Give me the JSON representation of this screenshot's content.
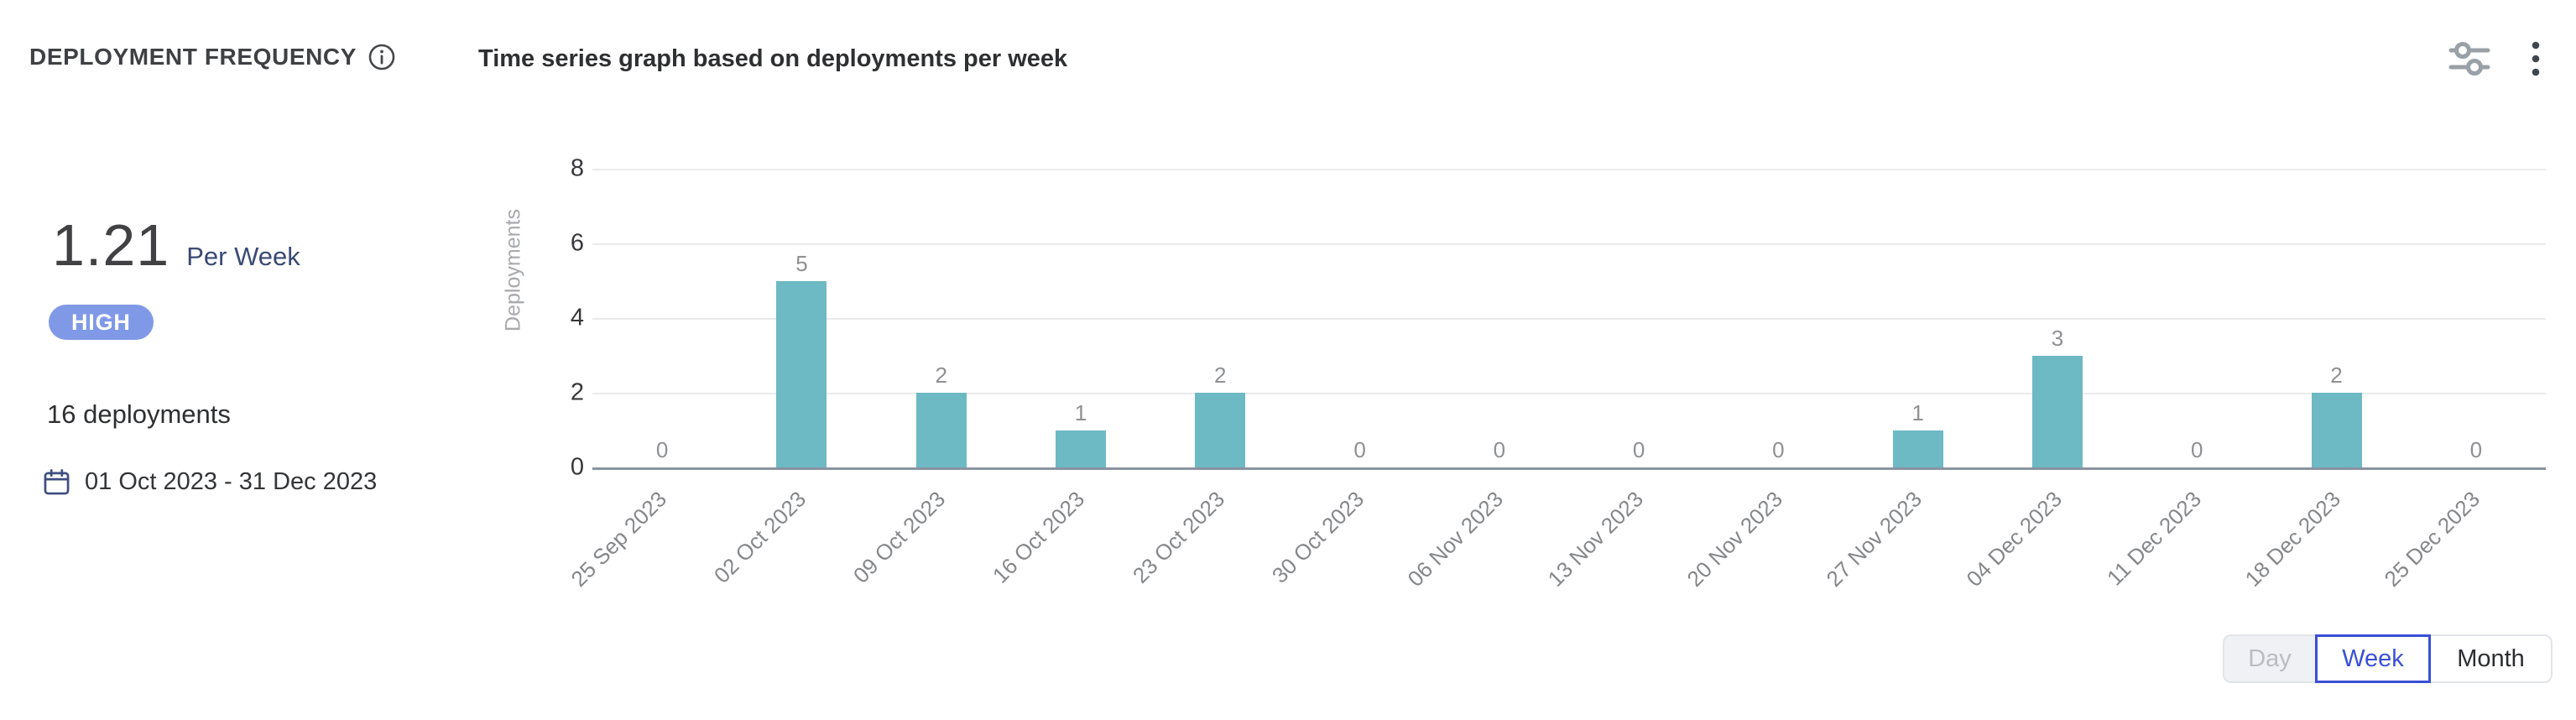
{
  "card": {
    "title": "DEPLOYMENT FREQUENCY",
    "subtitle": "Time series graph based on deployments per week"
  },
  "summary": {
    "value": "1.21",
    "unit": "Per Week",
    "badge": "HIGH",
    "deployments_total": "16 deployments",
    "date_range": "01 Oct 2023 - 31 Dec 2023"
  },
  "icons": {
    "info": "info-circle-icon",
    "filter": "filter-sliders-icon",
    "menu": "kebab-menu-icon",
    "calendar": "calendar-icon"
  },
  "chart_data": {
    "type": "bar",
    "title": "Time series graph based on deployments per week",
    "xlabel": "",
    "ylabel": "Deployments",
    "categories": [
      "25 Sep 2023",
      "02 Oct 2023",
      "09 Oct 2023",
      "16 Oct 2023",
      "23 Oct 2023",
      "30 Oct 2023",
      "06 Nov 2023",
      "13 Nov 2023",
      "20 Nov 2023",
      "27 Nov 2023",
      "04 Dec 2023",
      "11 Dec 2023",
      "18 Dec 2023",
      "25 Dec 2023"
    ],
    "values": [
      0,
      5,
      2,
      1,
      2,
      0,
      0,
      0,
      0,
      1,
      3,
      0,
      2,
      0
    ],
    "y_ticks": [
      0,
      2,
      4,
      6,
      8
    ],
    "ylim": [
      0,
      8
    ],
    "grid": true,
    "legend_position": "none",
    "bar_color": "#6db9c4",
    "data_label_color": "#8e9093"
  },
  "toggle": {
    "day": "Day",
    "week": "Week",
    "month": "Month",
    "selected": "Week",
    "disabled": "Day"
  },
  "colors": {
    "bar_teal": "#6db9c4",
    "badge_blue": "#8099e7",
    "selected_blue": "#3a4fd5",
    "unit_navy": "#3a4a74",
    "axis_line": "#8b93a1",
    "gridline": "#ebebeb"
  }
}
